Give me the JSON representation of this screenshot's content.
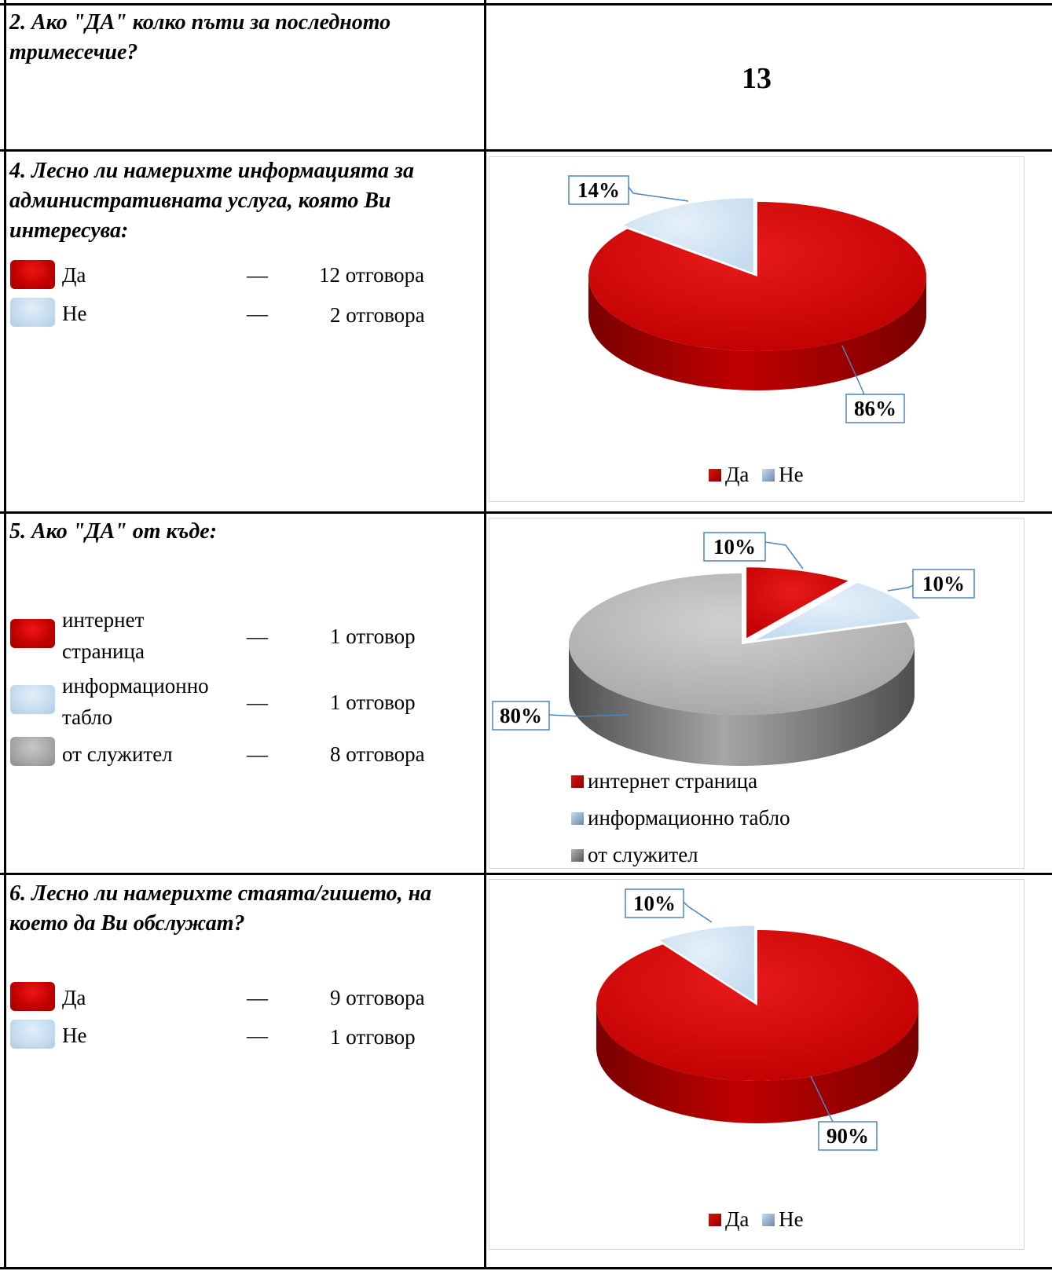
{
  "rows": {
    "q2": {
      "question": "2. Ако \"ДА\" колко пъти за последното тримесечие?",
      "answer": "13"
    },
    "q4": {
      "question": "4. Лесно ли намерихте информацията за административната услуга, която Ви интересува:",
      "items": [
        {
          "label": "Да",
          "dash": "—",
          "count": "12 отговора",
          "color": "#c00000"
        },
        {
          "label": "Не",
          "dash": "—",
          "count": "2 отговора",
          "color": "#c5dcef"
        }
      ]
    },
    "q5": {
      "question": "5. Ако \"ДА\" от къде:",
      "items": [
        {
          "label_line1": "интернет",
          "label_line2": "страница",
          "dash": "—",
          "count": "1 отговор",
          "color": "#c00000"
        },
        {
          "label_line1": "информационно",
          "label_line2": "табло",
          "dash": "—",
          "count": "1 отговор",
          "color": "#c5dcef"
        },
        {
          "label": "от служител",
          "dash": "—",
          "count": "8 отговора",
          "color": "#a6a6a6"
        }
      ]
    },
    "q6": {
      "question": "6. Лесно ли намерихте стаята/гишето, на което да Ви обслужат?",
      "items": [
        {
          "label": "Да",
          "dash": "—",
          "count": "9 отговора",
          "color": "#c00000"
        },
        {
          "label": "Не",
          "dash": "—",
          "count": "1 отговор",
          "color": "#c5dcef"
        }
      ]
    }
  },
  "chart_data": [
    {
      "type": "pie",
      "categories": [
        "Да",
        "Не"
      ],
      "values": [
        86,
        14
      ],
      "data_labels": [
        "86%",
        "14%"
      ],
      "legend": [
        "Да",
        "Не"
      ],
      "legend_position": "bottom"
    },
    {
      "type": "pie",
      "categories": [
        "интернет страница",
        "информационно табло",
        "от служител"
      ],
      "values": [
        10,
        10,
        80
      ],
      "data_labels": [
        "10%",
        "10%",
        "80%"
      ],
      "legend": [
        "интернет страница",
        "информационно табло",
        "от служител"
      ],
      "legend_position": "bottom"
    },
    {
      "type": "pie",
      "categories": [
        "Да",
        "Не"
      ],
      "values": [
        90,
        10
      ],
      "data_labels": [
        "90%",
        "10%"
      ],
      "legend": [
        "Да",
        "Не"
      ],
      "legend_position": "bottom"
    }
  ]
}
